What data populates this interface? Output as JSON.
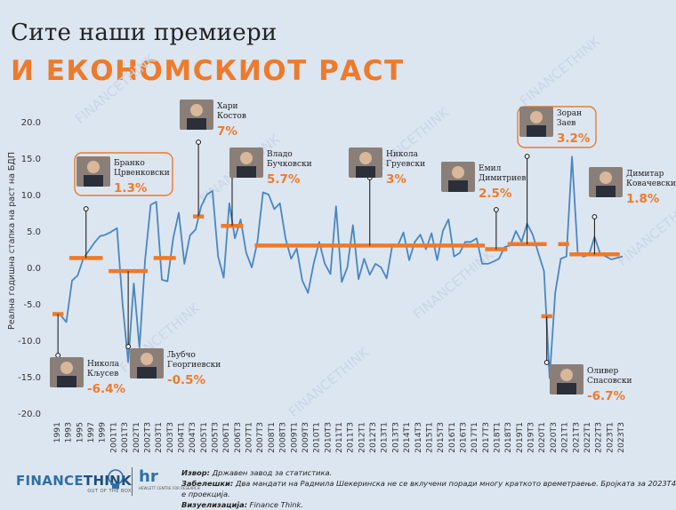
{
  "header": {
    "title_line1": "Сите наши премиери",
    "title_line2": "И ЕКОНОМСКИОТ РАСТ"
  },
  "watermark_text": "FINANCETHINK",
  "chart_data": {
    "type": "line",
    "ylabel": "Реална годишна стапка на раст на БДП",
    "ylim": [
      -20,
      20
    ],
    "yticks": [
      "20.0",
      "15.0",
      "10.0",
      "5.0",
      "0.0",
      "-5.0",
      "-10.0",
      "-15.0",
      "-20.0"
    ],
    "x_tick_labels": [
      "1991",
      "1993",
      "1995",
      "1997",
      "1999",
      "2001T1",
      "2001T3",
      "2002T1",
      "2002T3",
      "2003T1",
      "2003T3",
      "2004T1",
      "2004T3",
      "2005T1",
      "2005T3",
      "2006T1",
      "2006T3",
      "2007T1",
      "2007T3",
      "2008T1",
      "2008T3",
      "2009T1",
      "2009T3",
      "2010T1",
      "2010T3",
      "2011T1",
      "2011T3",
      "2012T1",
      "2012T3",
      "2013T1",
      "2013T3",
      "2014T1",
      "2014T3",
      "2015T1",
      "2015T3",
      "2016T1",
      "2016T3",
      "2017T1",
      "2017T3",
      "2018T1",
      "2018T3",
      "2019T1",
      "2019T3",
      "2020T1",
      "2020T3",
      "2021T1",
      "2021T3",
      "2022T1",
      "2022T3",
      "2023T1",
      "2023T3"
    ],
    "line_color": "#4a86c0",
    "avg_color": "#ee7a2a",
    "series": [
      {
        "values": [
          -6.2,
          -6.6,
          -7.5,
          -1.8,
          -1.1,
          1.2,
          2.3,
          3.4,
          4.3,
          4.5,
          4.9,
          5.4,
          -5.0,
          -13.0,
          -2.2,
          -11.0,
          1.0,
          8.6,
          9.0,
          -1.7,
          -1.9,
          4.0,
          7.5,
          0.5,
          4.4,
          5.2,
          8.4,
          10.0,
          10.5,
          1.5,
          -1.4,
          8.8,
          4.0,
          6.6,
          2.0,
          0.0,
          3.5,
          10.3,
          10.0,
          8.0,
          8.8,
          4.0,
          1.2,
          2.6,
          -1.8,
          -3.5,
          0.5,
          3.5,
          0.5,
          -0.9,
          8.4,
          -2.0,
          0.0,
          5.8,
          -1.6,
          1.2,
          -1.0,
          0.5,
          0.0,
          -1.5,
          3.0,
          3.0,
          4.8,
          1.0,
          3.5,
          4.5,
          2.5,
          4.7,
          1.0,
          5.0,
          6.6,
          1.5,
          2.0,
          3.5,
          3.5,
          4.0,
          0.5,
          0.5,
          0.8,
          1.2,
          2.8,
          3.0,
          5.0,
          3.5,
          6.0,
          4.5,
          2.0,
          -0.5,
          -15.2,
          -3.5,
          1.2,
          1.5,
          15.2,
          2.0,
          1.5,
          1.7,
          4.2,
          1.9,
          1.5,
          1.1,
          1.3,
          1.5
        ]
      }
    ],
    "premiers": [
      {
        "name_line1": "Никола",
        "name_line2": "Кљусев",
        "value": -6.4,
        "label": "-6.4%"
      },
      {
        "name_line1": "Бранко",
        "name_line2": "Црвенковски",
        "value": 1.3,
        "label": "1.3%"
      },
      {
        "name_line1": "Љубчо",
        "name_line2": "Георгиевски",
        "value": -0.5,
        "label": "-0.5%"
      },
      {
        "name_line1": "Бранко",
        "name_line2": "Црвенковски",
        "value": 1.3,
        "label": "1.3%",
        "hidden_label": true
      },
      {
        "name_line1": "Хари",
        "name_line2": "Костов",
        "value": 7.0,
        "label": "7%"
      },
      {
        "name_line1": "Владо",
        "name_line2": "Бучковски",
        "value": 5.7,
        "label": "5.7%"
      },
      {
        "name_line1": "Никола",
        "name_line2": "Груевски",
        "value": 3.0,
        "label": "3%"
      },
      {
        "name_line1": "Емил",
        "name_line2": "Димитриев",
        "value": 2.5,
        "label": "2.5%"
      },
      {
        "name_line1": "Зоран",
        "name_line2": "Заев",
        "value": 3.2,
        "label": "3.2%"
      },
      {
        "name_line1": "Оливер",
        "name_line2": "Спасовски",
        "value": -6.7,
        "label": "-6.7%"
      },
      {
        "name_line1": "Зоран",
        "name_line2": "Заев",
        "value": 3.2,
        "label": "3.2%",
        "hidden_label": true
      },
      {
        "name_line1": "Димитар",
        "name_line2": "Ковачевски",
        "value": 1.8,
        "label": "1.8%"
      }
    ]
  },
  "footer": {
    "logo_main": "FINANCE",
    "logo_think": "THINK",
    "logo_sub": "OUT OF THE BOX",
    "logo2": "hr",
    "logo2_sub": "HEWLETT CENTRE FOR RESEARCH",
    "source_label": "Извор:",
    "source_text": "Државен завод за статистика.",
    "notes_label": "Забелешки:",
    "notes_text": "Два мандати на Радмила Шекеринска не се вклучени поради многу краткото времетраење. Бројката за 2023Т4 е проекција.",
    "viz_label": "Визуелизација:",
    "viz_text": "Finance Think."
  }
}
